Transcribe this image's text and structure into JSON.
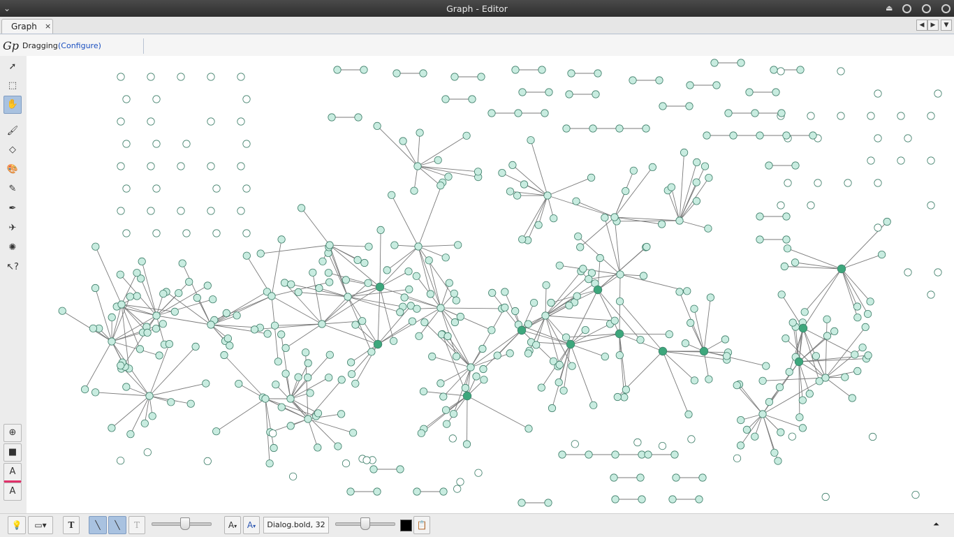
{
  "window": {
    "title": "Graph - Editor"
  },
  "tabs": [
    {
      "label": "Graph",
      "close": "×"
    }
  ],
  "tab_nav": {
    "prev": "◀",
    "next": "▶",
    "menu": "▼"
  },
  "mode": {
    "logo": "Gp",
    "label": "Dragging",
    "configure": "(Configure)"
  },
  "left_tools": [
    {
      "name": "select-arrow-icon",
      "glyph": "➚",
      "selected": false
    },
    {
      "name": "rectangle-select-icon",
      "glyph": "⬚",
      "selected": false
    },
    {
      "name": "drag-hand-icon",
      "glyph": "✋",
      "selected": true
    },
    {
      "name": "paintbrush-icon",
      "glyph": "🖌",
      "selected": false
    },
    {
      "name": "diamond-icon",
      "glyph": "◇",
      "selected": false
    },
    {
      "name": "paint-palette-icon",
      "glyph": "🎨",
      "selected": false
    },
    {
      "name": "pencil-icon",
      "glyph": "✎",
      "selected": false
    },
    {
      "name": "pen-icon",
      "glyph": "✒",
      "selected": false
    },
    {
      "name": "airplane-icon",
      "glyph": "✈",
      "selected": false
    },
    {
      "name": "gear-icon",
      "glyph": "✺",
      "selected": false
    },
    {
      "name": "pointer-help-icon",
      "glyph": "↖?",
      "selected": false
    }
  ],
  "left_tools_bottom": [
    {
      "name": "zoom-icon",
      "glyph": "⊕"
    },
    {
      "name": "background-color-icon",
      "glyph": "■"
    },
    {
      "name": "label-color-icon",
      "glyph": "A"
    },
    {
      "name": "font-icon",
      "glyph": "A"
    }
  ],
  "bottom": {
    "font_value": "Dialog.bold, 32",
    "text_tool": "T",
    "text_tool_2": "T",
    "font_decrease": "A",
    "font_increase": "A",
    "collapse": "⏶"
  },
  "colors": {
    "node_fill": "#c8ece0",
    "node_stroke": "#3f7f6a",
    "hub_fill": "#3da77c",
    "edge": "#7a7a7a",
    "canvas": "#ffffff"
  },
  "graph": {
    "node_count_estimate": 560,
    "layout": "force-directed network with isolated nodes and pairs"
  }
}
